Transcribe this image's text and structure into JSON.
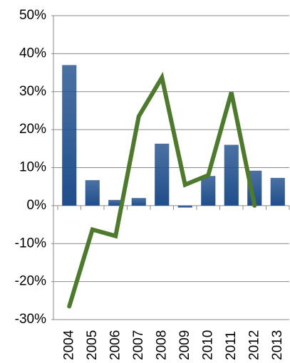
{
  "chart_data": {
    "type": "combo",
    "categories": [
      "2004",
      "2005",
      "2006",
      "2007",
      "2008",
      "2009",
      "2010",
      "2011",
      "2012",
      "2013"
    ],
    "series": [
      {
        "type": "bar",
        "color": "#1f4e8c",
        "values": [
          37,
          6.7,
          1.5,
          2,
          16.3,
          -0.5,
          7.8,
          16,
          9.2,
          7.3
        ]
      },
      {
        "type": "line",
        "color": "#4e7a2e",
        "values": [
          -26.5,
          -6.3,
          -8,
          23.5,
          33.7,
          5.5,
          8,
          29.8,
          0,
          null
        ]
      }
    ],
    "ylim": [
      -30,
      50
    ],
    "yticks": [
      {
        "value": -30,
        "label": "-30%"
      },
      {
        "value": -20,
        "label": "-20%"
      },
      {
        "value": -10,
        "label": "-10%"
      },
      {
        "value": 0,
        "label": "0%"
      },
      {
        "value": 10,
        "label": "10%"
      },
      {
        "value": 20,
        "label": "20%"
      },
      {
        "value": 30,
        "label": "30%"
      },
      {
        "value": 40,
        "label": "40%"
      },
      {
        "value": 50,
        "label": "50%"
      }
    ],
    "grid": true
  }
}
